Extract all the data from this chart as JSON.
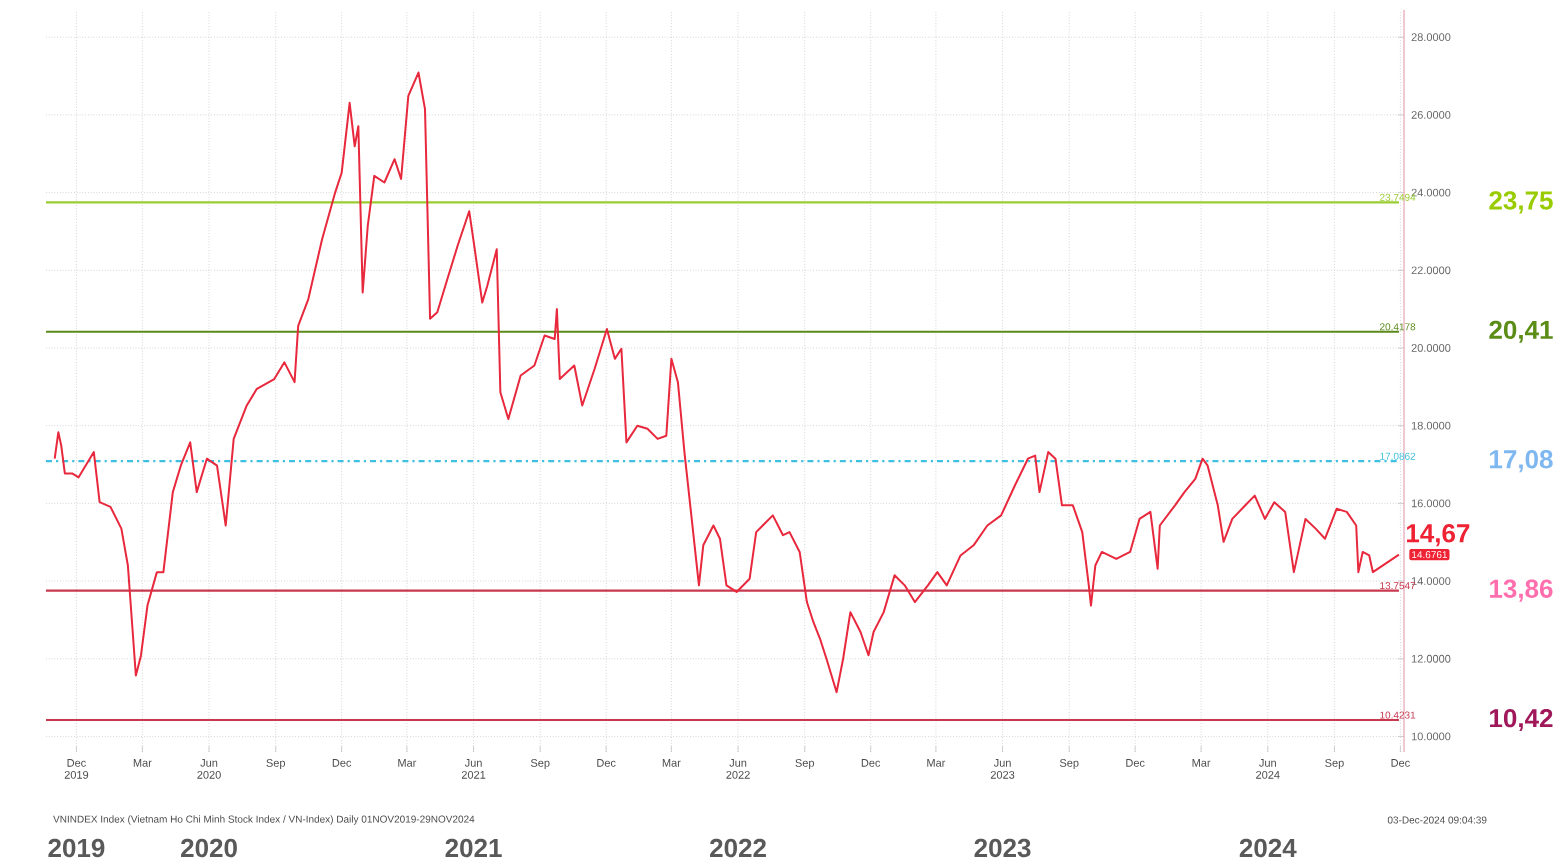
{
  "chart_data": {
    "type": "line",
    "xlim": [
      "2019-10-20",
      "2024-12-06"
    ],
    "ylim": [
      9.6,
      28.7
    ],
    "xticks": [
      {
        "value": "2019-12-01",
        "label": "Dec 2019"
      },
      {
        "value": "2020-03-01",
        "label": "Mar"
      },
      {
        "value": "2020-06-01",
        "label": "Jun 2020"
      },
      {
        "value": "2020-09-01",
        "label": "Sep"
      },
      {
        "value": "2020-12-01",
        "label": "Dec"
      },
      {
        "value": "2021-03-01",
        "label": "Mar"
      },
      {
        "value": "2021-06-01",
        "label": "Jun 2021"
      },
      {
        "value": "2021-09-01",
        "label": "Sep"
      },
      {
        "value": "2021-12-01",
        "label": "Dec"
      },
      {
        "value": "2022-03-01",
        "label": "Mar"
      },
      {
        "value": "2022-06-01",
        "label": "Jun 2022"
      },
      {
        "value": "2022-09-01",
        "label": "Sep"
      },
      {
        "value": "2022-12-01",
        "label": "Dec"
      },
      {
        "value": "2023-03-01",
        "label": "Mar"
      },
      {
        "value": "2023-06-01",
        "label": "Jun 2023"
      },
      {
        "value": "2023-09-01",
        "label": "Sep"
      },
      {
        "value": "2023-12-01",
        "label": "Dec"
      },
      {
        "value": "2024-03-01",
        "label": "Mar"
      },
      {
        "value": "2024-06-01",
        "label": "Jun 2024"
      },
      {
        "value": "2024-09-01",
        "label": "Sep"
      },
      {
        "value": "2024-12-01",
        "label": "Dec"
      }
    ],
    "yticks": [
      {
        "value": 10,
        "label": "10.0000"
      },
      {
        "value": 12,
        "label": "12.0000"
      },
      {
        "value": 14,
        "label": "14.0000"
      },
      {
        "value": 16,
        "label": "16.0000"
      },
      {
        "value": 18,
        "label": "18.0000"
      },
      {
        "value": 20,
        "label": "20.0000"
      },
      {
        "value": 22,
        "label": "22.0000"
      },
      {
        "value": 24,
        "label": "24.0000"
      },
      {
        "value": 26,
        "label": "26.0000"
      },
      {
        "value": 28,
        "label": "28.0000"
      }
    ],
    "grid": true,
    "series": [
      {
        "color": "#e8283c",
        "x": [
          "2019-11-01",
          "2019-11-06",
          "2019-11-10",
          "2019-11-15",
          "2019-11-25",
          "2019-12-04",
          "2019-12-25",
          "2020-01-02",
          "2020-01-17",
          "2020-02-01",
          "2020-02-10",
          "2020-02-21",
          "2020-02-28",
          "2020-03-08",
          "2020-03-21",
          "2020-03-30",
          "2020-04-12",
          "2020-04-23",
          "2020-05-06",
          "2020-05-15",
          "2020-05-29",
          "2020-06-12",
          "2020-06-24",
          "2020-07-05",
          "2020-07-23",
          "2020-08-06",
          "2020-08-30",
          "2020-09-13",
          "2020-09-27",
          "2020-10-02",
          "2020-10-16",
          "2020-11-04",
          "2020-11-22",
          "2020-12-01",
          "2020-12-12",
          "2020-12-19",
          "2020-12-24",
          "2020-12-30",
          "2021-01-06",
          "2021-01-15",
          "2021-01-29",
          "2021-02-12",
          "2021-02-21",
          "2021-03-03",
          "2021-03-17",
          "2021-03-26",
          "2021-03-29",
          "2021-04-02",
          "2021-04-12",
          "2021-04-26",
          "2021-05-10",
          "2021-05-26",
          "2021-06-02",
          "2021-06-13",
          "2021-06-20",
          "2021-07-03",
          "2021-07-08",
          "2021-07-19",
          "2021-08-05",
          "2021-08-24",
          "2021-09-07",
          "2021-09-21",
          "2021-09-24",
          "2021-09-28",
          "2021-10-18",
          "2021-10-29",
          "2021-11-15",
          "2021-12-02",
          "2021-12-13",
          "2021-12-22",
          "2021-12-29",
          "2022-01-13",
          "2022-01-27",
          "2022-02-10",
          "2022-02-22",
          "2022-03-01",
          "2022-03-10",
          "2022-03-19",
          "2022-03-27",
          "2022-04-08",
          "2022-04-14",
          "2022-04-28",
          "2022-05-07",
          "2022-05-16",
          "2022-05-30",
          "2022-06-17",
          "2022-06-26",
          "2022-07-19",
          "2022-08-02",
          "2022-08-11",
          "2022-08-25",
          "2022-09-04",
          "2022-09-13",
          "2022-09-22",
          "2022-10-01",
          "2022-10-15",
          "2022-10-24",
          "2022-11-03",
          "2022-11-17",
          "2022-11-28",
          "2022-12-05",
          "2022-12-19",
          "2023-01-03",
          "2023-01-17",
          "2023-01-31",
          "2023-02-18",
          "2023-03-03",
          "2023-03-16",
          "2023-04-04",
          "2023-04-22",
          "2023-05-11",
          "2023-05-30",
          "2023-06-18",
          "2023-07-06",
          "2023-07-16",
          "2023-07-22",
          "2023-08-03",
          "2023-08-13",
          "2023-08-22",
          "2023-09-06",
          "2023-09-19",
          "2023-09-28",
          "2023-10-01",
          "2023-10-07",
          "2023-10-16",
          "2023-11-05",
          "2023-11-24",
          "2023-12-07",
          "2023-12-22",
          "2024-01-01",
          "2024-01-04",
          "2024-01-25",
          "2024-02-07",
          "2024-02-22",
          "2024-03-03",
          "2024-03-10",
          "2024-03-24",
          "2024-04-01",
          "2024-04-13",
          "2024-05-01",
          "2024-05-14",
          "2024-05-28",
          "2024-06-10",
          "2024-06-25",
          "2024-07-07",
          "2024-07-23",
          "2024-08-06",
          "2024-08-19",
          "2024-09-04",
          "2024-09-18",
          "2024-10-01",
          "2024-10-04",
          "2024-10-10",
          "2024-10-19",
          "2024-10-24",
          "2024-11-29"
        ],
        "values": [
          17.15,
          17.83,
          17.49,
          16.77,
          16.77,
          16.67,
          17.32,
          16.03,
          15.91,
          15.35,
          14.4,
          11.57,
          12.08,
          13.37,
          14.23,
          14.23,
          16.29,
          16.97,
          17.57,
          16.29,
          17.15,
          16.97,
          15.43,
          17.66,
          18.52,
          18.95,
          19.2,
          19.63,
          19.12,
          20.57,
          21.26,
          22.8,
          24.0,
          24.51,
          26.31,
          25.19,
          25.71,
          21.43,
          23.14,
          24.43,
          24.26,
          24.86,
          24.35,
          26.49,
          27.09,
          26.15,
          23.83,
          20.75,
          20.92,
          21.78,
          22.63,
          23.52,
          22.63,
          21.17,
          21.6,
          22.54,
          18.86,
          18.17,
          19.29,
          19.55,
          20.32,
          20.23,
          21.0,
          19.2,
          19.55,
          18.52,
          19.46,
          20.49,
          19.72,
          19.98,
          17.57,
          18.0,
          17.92,
          17.66,
          17.74,
          19.72,
          19.12,
          17.32,
          15.95,
          13.89,
          14.92,
          15.43,
          15.09,
          13.89,
          13.72,
          14.06,
          15.26,
          15.69,
          15.18,
          15.26,
          14.75,
          13.46,
          12.94,
          12.52,
          12.0,
          11.14,
          12.0,
          13.2,
          12.69,
          12.09,
          12.69,
          13.2,
          14.15,
          13.89,
          13.46,
          13.89,
          14.23,
          13.89,
          14.66,
          14.92,
          15.43,
          15.69,
          16.46,
          17.15,
          17.23,
          16.29,
          17.32,
          17.15,
          15.95,
          15.95,
          15.26,
          13.89,
          13.37,
          14.4,
          14.75,
          14.57,
          14.75,
          15.6,
          15.78,
          14.32,
          15.43,
          15.95,
          16.29,
          16.63,
          17.15,
          16.97,
          15.95,
          15.01,
          15.6,
          15.95,
          16.2,
          15.6,
          16.03,
          15.78,
          14.23,
          15.6,
          15.35,
          15.09,
          15.86,
          15.78,
          15.43,
          14.23,
          14.75,
          14.66,
          14.23,
          14.68
        ]
      }
    ],
    "ref_lines": [
      {
        "axis": "y",
        "value": 23.7494,
        "label": "23.7494",
        "color": "#9acd32"
      },
      {
        "axis": "y",
        "value": 20.4178,
        "label": "20.4178",
        "color": "#5b8a1a"
      },
      {
        "axis": "y",
        "value": 17.0862,
        "label": "17.0862",
        "color": "#40c0e0",
        "line_style": "dashed"
      },
      {
        "axis": "y",
        "value": 13.7547,
        "label": "13.7547",
        "color": "#c8384f"
      },
      {
        "axis": "y",
        "value": 10.4231,
        "label": "10.4231",
        "color": "#c8384f"
      }
    ],
    "annotations": [
      "VNINDEX Index (Vietnam Ho Chi Minh Stock Index / VN-Index)  Daily 01NOV2019-29NOV2024",
      "03-Dec-2024 09:04:39",
      {
        "text": "14,67",
        "x": "2024-11-29",
        "y": 14.68
      },
      {
        "text": "14.6761",
        "x": "2024-11-29",
        "y": 14.68
      },
      "23,75",
      "20,41",
      "17,08",
      "13,86",
      "10,42",
      "2019",
      "2020",
      "2021",
      "2022",
      "2023",
      "2024"
    ]
  }
}
